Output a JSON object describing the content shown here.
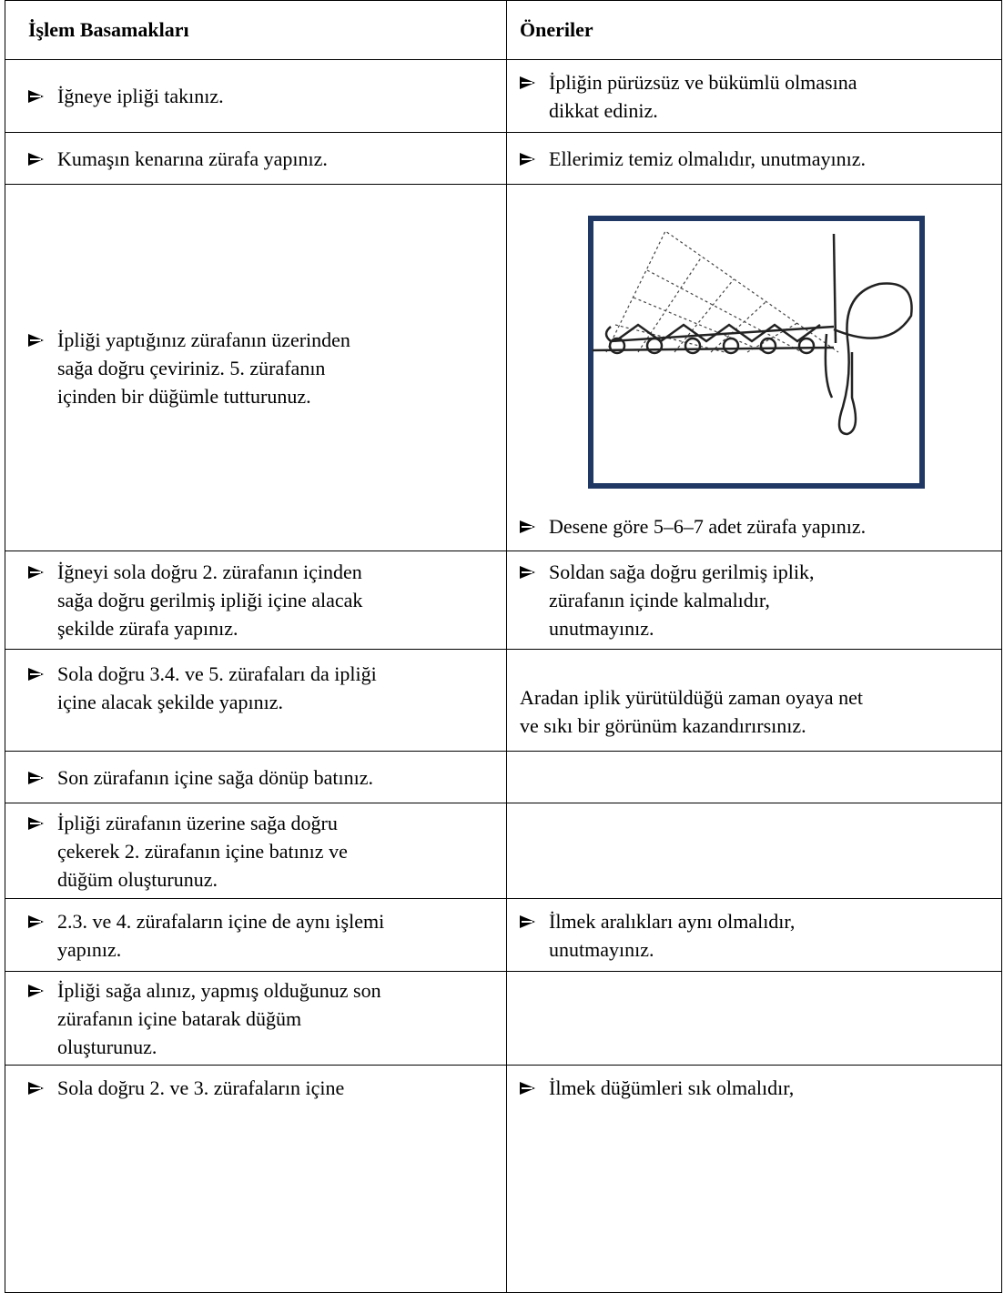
{
  "table": {
    "header": [
      "İşlem Basamakları",
      "Öneriler"
    ],
    "rows": [
      [
        {
          "bullet": [
            "İğneye ipliği takınız."
          ]
        },
        {
          "bullet": [
            "İpliğin pürüzsüz ve bükümlü olmasına",
            "dikkat ediniz."
          ]
        }
      ],
      [
        {
          "bullet": [
            "Kumaşın kenarına zürafa yapınız."
          ]
        },
        {
          "bullet": [
            "Ellerimiz temiz olmalıdır, unutmayınız."
          ]
        }
      ],
      [
        {
          "bullet": [
            "İpliği yaptığınız zürafanın üzerinden",
            "sağa doğru çeviriniz. 5. zürafanın",
            "içinden bir düğümle tutturunuz."
          ]
        },
        {
          "figure": true,
          "bullet": [
            "Desene göre 5–6–7 adet zürafa yapınız."
          ]
        }
      ],
      [
        {
          "bullet": [
            "İğneyi sola doğru 2. zürafanın içinden",
            "sağa doğru gerilmiş ipliği içine alacak",
            "şekilde zürafa yapınız."
          ]
        },
        {
          "bullet": [
            "Soldan sağa doğru gerilmiş iplik,",
            "zürafanın içinde kalmalıdır,",
            "unutmayınız."
          ]
        }
      ],
      [
        {
          "bullet": [
            "Sola doğru 3.4. ve 5. zürafaları da ipliği",
            "içine alacak şekilde yapınız."
          ]
        },
        {
          "plain": [
            "Aradan iplik yürütüldüğü zaman oyaya net",
            "ve sıkı bir görünüm kazandırırsınız."
          ]
        }
      ],
      [
        {
          "bullet": [
            "Son zürafanın içine sağa dönüp batınız."
          ]
        },
        {}
      ],
      [
        {
          "bullet": [
            "İpliği zürafanın üzerine sağa doğru",
            "çekerek 2. zürafanın içine batınız ve",
            "düğüm oluşturunuz."
          ]
        },
        {}
      ],
      [
        {
          "bullet": [
            "2.3. ve 4. zürafaların içine de aynı işlemi",
            "yapınız."
          ]
        },
        {
          "bullet": [
            "İlmek aralıkları aynı olmalıdır,",
            "unutmayınız."
          ]
        }
      ],
      [
        {
          "bullet": [
            "İpliği sağa alınız, yapmış olduğunuz son",
            "zürafanın içine batarak düğüm",
            "oluşturunuz."
          ]
        },
        {}
      ],
      [
        {
          "bullet": [
            "Sola doğru 2. ve 3. zürafaların içine"
          ]
        },
        {
          "bullet": [
            "İlmek düğümleri sık olmalıdır,"
          ]
        }
      ]
    ]
  }
}
